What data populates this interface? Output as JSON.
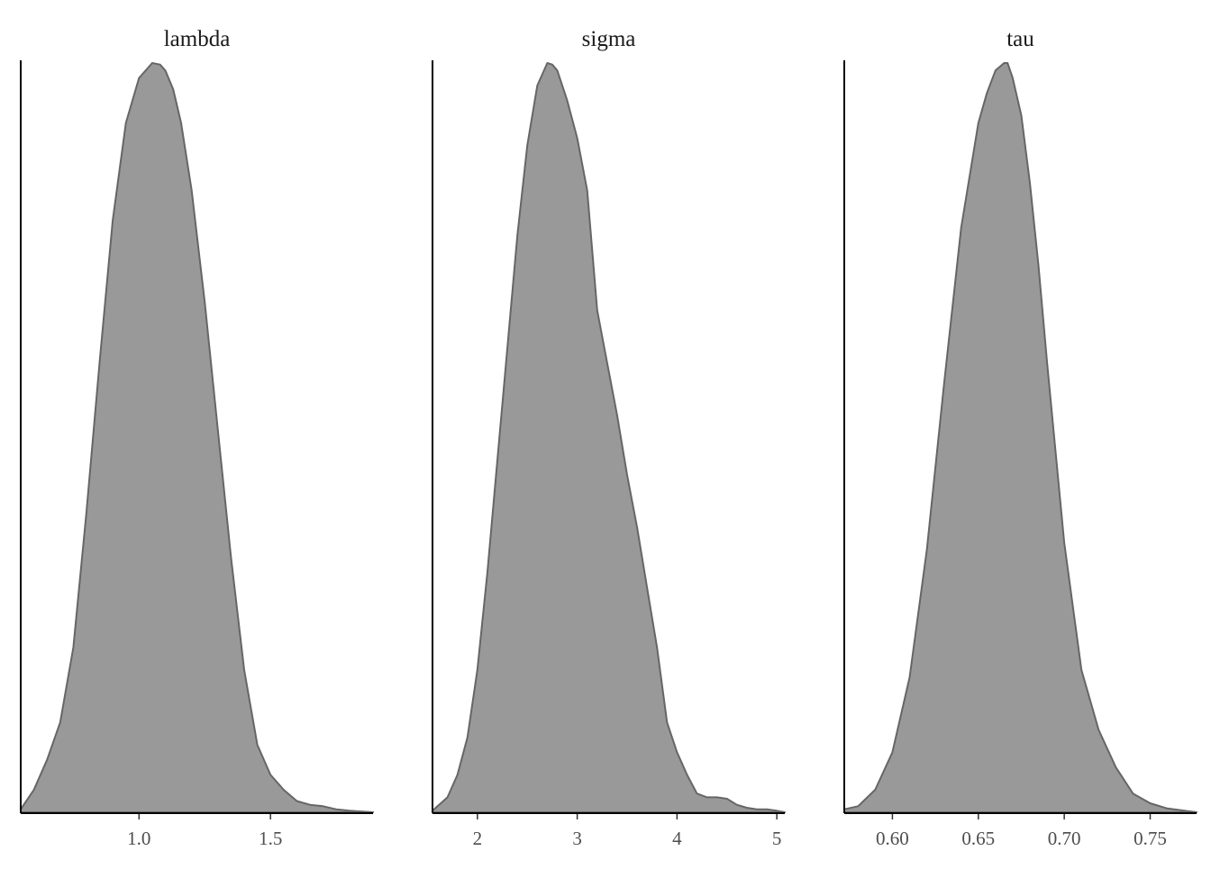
{
  "chart_data": [
    {
      "type": "area",
      "title": "lambda",
      "xlim": [
        0.55,
        1.89
      ],
      "ticks": [
        1.0,
        1.5
      ],
      "tick_labels": [
        "1.0",
        "1.5"
      ],
      "x": [
        0.55,
        0.6,
        0.65,
        0.7,
        0.75,
        0.8,
        0.85,
        0.9,
        0.95,
        1.0,
        1.05,
        1.08,
        1.1,
        1.13,
        1.16,
        1.2,
        1.25,
        1.3,
        1.35,
        1.4,
        1.45,
        1.5,
        1.55,
        1.6,
        1.65,
        1.7,
        1.75,
        1.8,
        1.85,
        1.89
      ],
      "y": [
        0.004,
        0.03,
        0.07,
        0.12,
        0.22,
        0.4,
        0.6,
        0.79,
        0.92,
        0.98,
        1.0,
        0.998,
        0.99,
        0.965,
        0.92,
        0.83,
        0.68,
        0.51,
        0.34,
        0.19,
        0.09,
        0.05,
        0.03,
        0.015,
        0.01,
        0.008,
        0.004,
        0.002,
        0.001,
        0.0
      ],
      "fill": "#999999",
      "stroke": "#666666"
    },
    {
      "type": "area",
      "title": "sigma",
      "xlim": [
        1.55,
        5.08
      ],
      "ticks": [
        2,
        3,
        4,
        5
      ],
      "tick_labels": [
        "2",
        "3",
        "4",
        "5"
      ],
      "x": [
        1.55,
        1.7,
        1.8,
        1.9,
        2.0,
        2.1,
        2.2,
        2.3,
        2.4,
        2.5,
        2.6,
        2.7,
        2.75,
        2.8,
        2.9,
        3.0,
        3.1,
        3.2,
        3.3,
        3.4,
        3.5,
        3.6,
        3.7,
        3.8,
        3.9,
        4.0,
        4.1,
        4.2,
        4.3,
        4.4,
        4.5,
        4.6,
        4.7,
        4.8,
        4.9,
        5.0,
        5.08
      ],
      "y": [
        0.002,
        0.02,
        0.05,
        0.1,
        0.19,
        0.32,
        0.47,
        0.62,
        0.77,
        0.89,
        0.97,
        1.0,
        0.998,
        0.99,
        0.95,
        0.9,
        0.83,
        0.67,
        0.6,
        0.53,
        0.45,
        0.38,
        0.3,
        0.22,
        0.12,
        0.08,
        0.05,
        0.025,
        0.02,
        0.02,
        0.018,
        0.01,
        0.006,
        0.004,
        0.004,
        0.002,
        0.0
      ],
      "fill": "#999999",
      "stroke": "#666666"
    },
    {
      "type": "area",
      "title": "tau",
      "xlim": [
        0.572,
        0.777
      ],
      "ticks": [
        0.6,
        0.65,
        0.7,
        0.75
      ],
      "tick_labels": [
        "0.60",
        "0.65",
        "0.70",
        "0.75"
      ],
      "x": [
        0.572,
        0.58,
        0.59,
        0.6,
        0.61,
        0.62,
        0.63,
        0.64,
        0.65,
        0.655,
        0.66,
        0.665,
        0.667,
        0.67,
        0.675,
        0.68,
        0.685,
        0.69,
        0.7,
        0.71,
        0.72,
        0.73,
        0.74,
        0.75,
        0.76,
        0.77,
        0.777
      ],
      "y": [
        0.004,
        0.008,
        0.03,
        0.08,
        0.18,
        0.35,
        0.57,
        0.78,
        0.92,
        0.96,
        0.99,
        1.0,
        1.0,
        0.98,
        0.93,
        0.84,
        0.73,
        0.6,
        0.36,
        0.19,
        0.11,
        0.06,
        0.025,
        0.012,
        0.005,
        0.002,
        0.0
      ],
      "fill": "#999999",
      "stroke": "#666666"
    }
  ]
}
